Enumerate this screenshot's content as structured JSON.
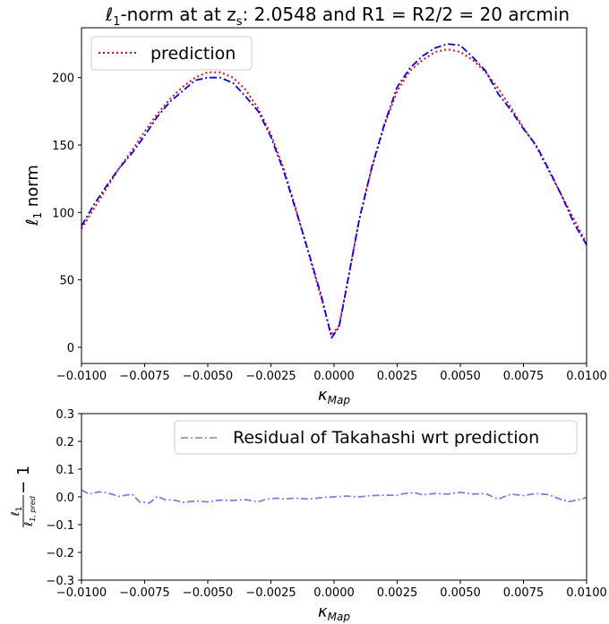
{
  "chart_data": [
    {
      "type": "line",
      "title_prefix": "ℓ",
      "title_sub1": "1",
      "title_mid": "-norm at at z",
      "title_sub2": "s",
      "title_suffix": ": 2.0548 and R1 = R2/2 = 20 arcmin",
      "xlabel_main": "κ",
      "xlabel_sub": "Map",
      "ylabel_main": "ℓ",
      "ylabel_sub": "1",
      "ylabel_suffix": " norm",
      "xlim": [
        -0.01,
        0.01
      ],
      "ylim": [
        -12,
        237
      ],
      "xticks": [
        -0.01,
        -0.0075,
        -0.005,
        -0.0025,
        0.0,
        0.0025,
        0.005,
        0.0075,
        0.01
      ],
      "xtick_labels": [
        "−0.0100",
        "−0.0075",
        "−0.0050",
        "−0.0025",
        "0.0000",
        "0.0025",
        "0.0050",
        "0.0075",
        "0.0100"
      ],
      "yticks": [
        0,
        50,
        100,
        150,
        200
      ],
      "ytick_labels": [
        "0",
        "50",
        "100",
        "150",
        "200"
      ],
      "legend": {
        "position": "upper-left",
        "entries": [
          "prediction"
        ]
      },
      "series": [
        {
          "name": "prediction",
          "color": "#ff0000",
          "style": "dotted",
          "x": [
            -0.01,
            -0.0095,
            -0.009,
            -0.0085,
            -0.008,
            -0.0075,
            -0.007,
            -0.0065,
            -0.006,
            -0.0055,
            -0.005,
            -0.0045,
            -0.004,
            -0.0035,
            -0.003,
            -0.0025,
            -0.002,
            -0.0015,
            -0.001,
            -0.0005,
            -0.0001,
            0.0002,
            0.0005,
            0.001,
            0.0015,
            0.002,
            0.0025,
            0.003,
            0.0035,
            0.004,
            0.0045,
            0.005,
            0.0055,
            0.006,
            0.0065,
            0.007,
            0.0075,
            0.008,
            0.0085,
            0.009,
            0.0095,
            0.01
          ],
          "y": [
            88,
            103,
            118,
            133,
            146,
            160,
            173,
            184,
            193,
            200,
            204,
            204,
            200,
            191,
            177,
            158,
            133,
            102,
            69,
            36,
            9,
            16,
            45,
            95,
            133,
            165,
            190,
            205,
            213,
            219,
            221,
            219,
            213,
            204,
            192,
            178,
            163,
            149,
            131,
            113,
            95,
            77
          ]
        },
        {
          "name": "",
          "color": "#0000ff",
          "style": "dashdot",
          "x": [
            -0.01,
            -0.0095,
            -0.009,
            -0.0085,
            -0.008,
            -0.0075,
            -0.007,
            -0.0065,
            -0.006,
            -0.0055,
            -0.005,
            -0.0045,
            -0.004,
            -0.0035,
            -0.003,
            -0.0025,
            -0.002,
            -0.0015,
            -0.001,
            -0.0005,
            -0.0001,
            0.0002,
            0.0005,
            0.001,
            0.0015,
            0.002,
            0.0025,
            0.003,
            0.0035,
            0.004,
            0.0045,
            0.005,
            0.0055,
            0.006,
            0.0065,
            0.007,
            0.0075,
            0.008,
            0.0085,
            0.009,
            0.0095,
            0.01
          ],
          "y": [
            90,
            106,
            120,
            133,
            144,
            157,
            171,
            182,
            190,
            198,
            200,
            200,
            196,
            186,
            175,
            156,
            131,
            101,
            70,
            38,
            7,
            15,
            45,
            95,
            134,
            166,
            193,
            207,
            216,
            222,
            225,
            224,
            215,
            205,
            188,
            176,
            162,
            150,
            132,
            113,
            92,
            76
          ]
        }
      ]
    },
    {
      "type": "line",
      "xlabel_main": "κ",
      "xlabel_sub": "Map",
      "ylabel_num_main": "ℓ",
      "ylabel_num_sub": "1",
      "ylabel_den_main": "ℓ",
      "ylabel_den_sub": "1, pred",
      "ylabel_tail": " − 1",
      "xlim": [
        -0.01,
        0.01
      ],
      "ylim": [
        -0.3,
        0.3
      ],
      "xticks": [
        -0.01,
        -0.0075,
        -0.005,
        -0.0025,
        0.0,
        0.0025,
        0.005,
        0.0075,
        0.01
      ],
      "xtick_labels": [
        "−0.0100",
        "−0.0075",
        "−0.0050",
        "−0.0025",
        "0.0000",
        "0.0025",
        "0.0050",
        "0.0075",
        "0.0100"
      ],
      "yticks": [
        -0.3,
        -0.2,
        -0.1,
        0.0,
        0.1,
        0.2,
        0.3
      ],
      "ytick_labels": [
        "−0.3",
        "−0.2",
        "−0.1",
        "0.0",
        "0.1",
        "0.2",
        "0.3"
      ],
      "legend": {
        "position": "upper-right",
        "entries": [
          "Residual of Takahashi wrt prediction"
        ]
      },
      "series": [
        {
          "name": "Residual of Takahashi wrt prediction",
          "color": "#7b7bff",
          "style": "dashdot",
          "x": [
            -0.01,
            -0.0097,
            -0.0093,
            -0.009,
            -0.0085,
            -0.008,
            -0.0077,
            -0.0073,
            -0.007,
            -0.0067,
            -0.0063,
            -0.006,
            -0.0055,
            -0.005,
            -0.0045,
            -0.004,
            -0.0035,
            -0.003,
            -0.0027,
            -0.0023,
            -0.002,
            -0.0015,
            -0.001,
            -0.0005,
            0.0,
            0.0005,
            0.001,
            0.0015,
            0.002,
            0.0025,
            0.0028,
            0.0032,
            0.0035,
            0.004,
            0.0045,
            0.005,
            0.0055,
            0.006,
            0.0065,
            0.007,
            0.0075,
            0.008,
            0.0085,
            0.009,
            0.0093,
            0.0097,
            0.01
          ],
          "y": [
            0.025,
            0.01,
            0.018,
            0.015,
            0.002,
            0.01,
            -0.018,
            -0.022,
            0.002,
            -0.01,
            -0.012,
            -0.02,
            -0.015,
            -0.018,
            -0.012,
            -0.013,
            -0.01,
            -0.018,
            -0.008,
            -0.005,
            -0.007,
            -0.005,
            -0.008,
            -0.003,
            0.0,
            0.003,
            0.0,
            0.005,
            0.006,
            0.006,
            0.012,
            0.015,
            0.008,
            0.012,
            0.01,
            0.016,
            0.01,
            0.012,
            -0.008,
            0.01,
            0.005,
            0.012,
            0.008,
            -0.01,
            -0.017,
            -0.01,
            -0.002
          ]
        }
      ]
    }
  ]
}
